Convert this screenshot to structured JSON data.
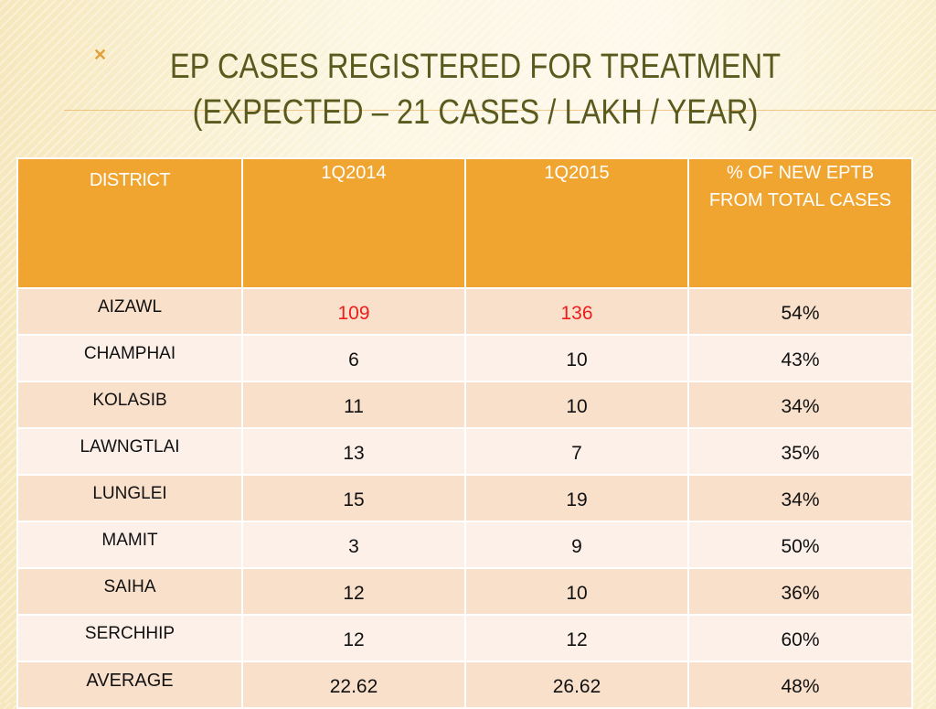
{
  "slide": {
    "title_line1": "EP CASES REGISTERED FOR TREATMENT",
    "title_line2": "(EXPECTED – 21 CASES / LAKH / YEAR)",
    "accent_color": "#f0a531",
    "highlight_color": "#ee1c1c"
  },
  "table": {
    "headers": {
      "district": "DISTRICT",
      "q2014": "1Q2014",
      "q2015": "1Q2015",
      "percent": "% OF NEW EPTB FROM TOTAL CASES"
    },
    "rows": [
      {
        "district": "AIZAWL",
        "q2014": "109",
        "q2015": "136",
        "percent": "54%"
      },
      {
        "district": "CHAMPHAI",
        "q2014": "6",
        "q2015": "10",
        "percent": "43%"
      },
      {
        "district": "KOLASIB",
        "q2014": "11",
        "q2015": "10",
        "percent": "34%"
      },
      {
        "district": "LAWNGTLAI",
        "q2014": "13",
        "q2015": "7",
        "percent": "35%"
      },
      {
        "district": "LUNGLEI",
        "q2014": "15",
        "q2015": "19",
        "percent": "34%"
      },
      {
        "district": "MAMIT",
        "q2014": "3",
        "q2015": "9",
        "percent": "50%"
      },
      {
        "district": "SAIHA",
        "q2014": "12",
        "q2015": "10",
        "percent": "36%"
      },
      {
        "district": "SERCHHIP",
        "q2014": "12",
        "q2015": "12",
        "percent": "60%"
      },
      {
        "district": "AVERAGE",
        "q2014": "22.62",
        "q2015": "26.62",
        "percent": "48%"
      }
    ]
  }
}
